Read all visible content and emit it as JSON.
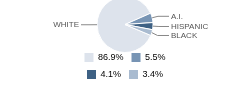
{
  "chart_data": {
    "type": "pie",
    "categories": [
      "WHITE",
      "A.I.",
      "HISPANIC",
      "BLACK"
    ],
    "values": [
      86.9,
      5.5,
      4.1,
      3.4
    ],
    "value_labels": [
      "86.9%",
      "5.5%",
      "4.1%",
      "3.4%"
    ],
    "colors": [
      "#dde3ec",
      "#7794b4",
      "#3e6184",
      "#a9bbd0"
    ],
    "legend": "bottom"
  }
}
